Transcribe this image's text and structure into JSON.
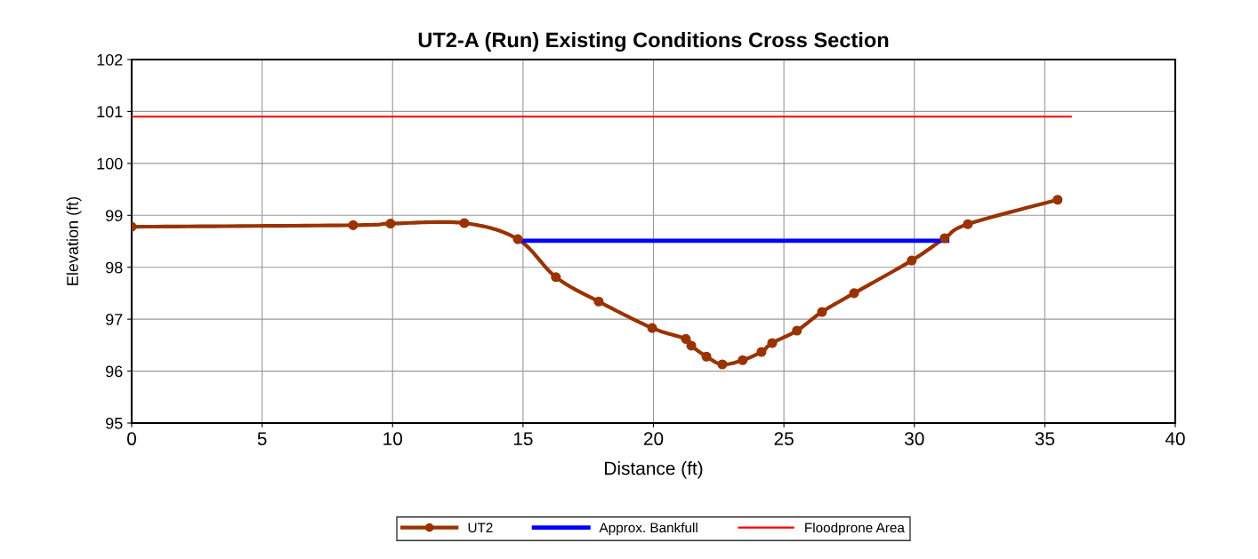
{
  "chart_data": {
    "type": "line",
    "title": "UT2-A (Run) Existing Conditions Cross Section",
    "xlabel": "Distance (ft)",
    "ylabel": "Elevation (ft)",
    "xlim": [
      0,
      40
    ],
    "xticks": [
      0,
      5,
      10,
      15,
      20,
      25,
      30,
      35,
      40
    ],
    "ylim": [
      95,
      102
    ],
    "yticks": [
      95,
      96,
      97,
      98,
      99,
      100,
      101,
      102
    ],
    "grid": true,
    "legend": "bottom",
    "series": [
      {
        "name": "UT2",
        "color": "#993300",
        "marker": "circle",
        "x": [
          0,
          8.49,
          9.92,
          12.75,
          14.8,
          16.26,
          17.9,
          19.95,
          21.24,
          21.45,
          22.03,
          22.64,
          23.42,
          24.14,
          24.55,
          25.5,
          26.46,
          27.69,
          29.9,
          31.16,
          32.05,
          35.49
        ],
        "values": [
          98.78,
          98.81,
          98.84,
          98.85,
          98.54,
          97.81,
          97.34,
          96.83,
          96.62,
          96.49,
          96.28,
          96.13,
          96.21,
          96.37,
          96.54,
          96.78,
          97.14,
          97.5,
          98.13,
          98.56,
          98.83,
          99.3
        ]
      },
      {
        "name": "Approx. Bankfull",
        "color": "#0000ff",
        "marker": "none",
        "x": [
          14.8,
          31.26
        ],
        "values": [
          98.51,
          98.51
        ]
      },
      {
        "name": "Floodprone Area",
        "color": "#ff0000",
        "marker": "none",
        "x": [
          0,
          36.0
        ],
        "values": [
          100.9,
          100.9
        ]
      }
    ]
  }
}
